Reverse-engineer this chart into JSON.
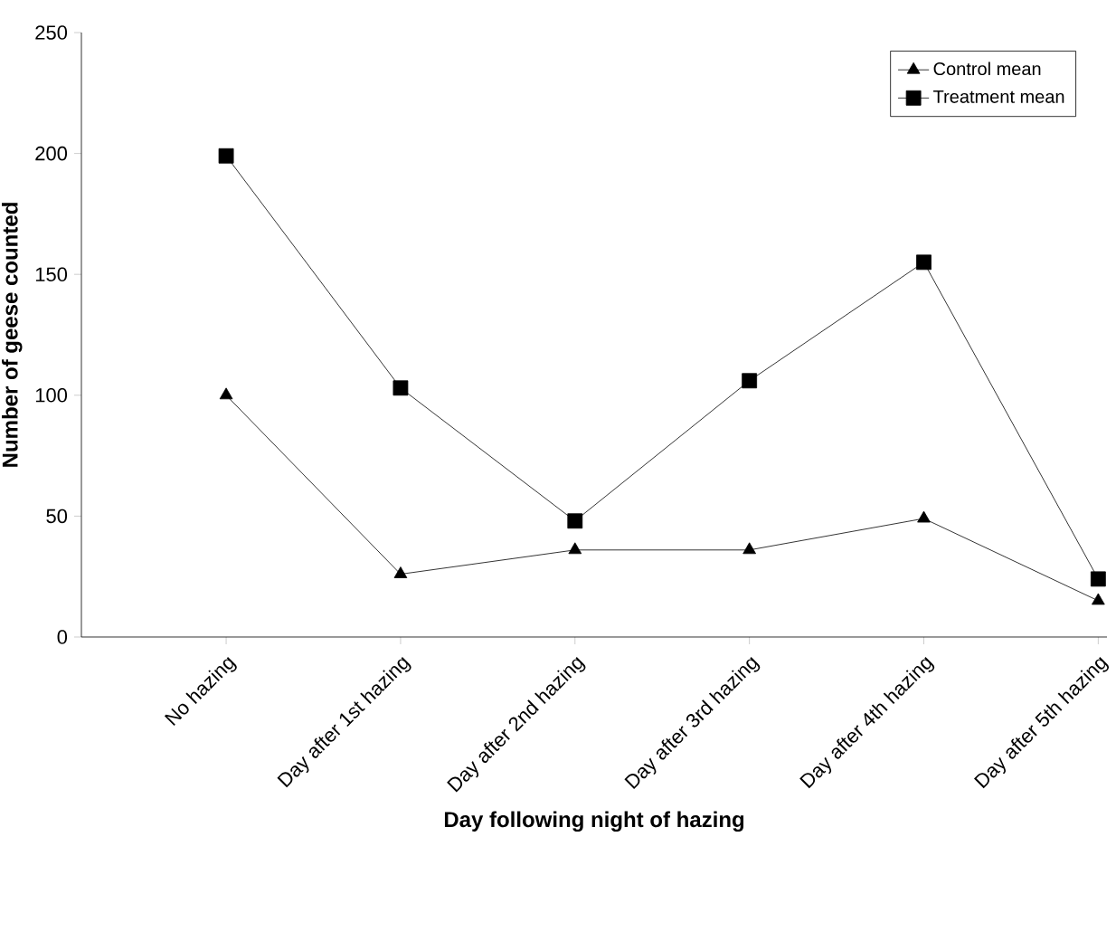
{
  "chart_data": {
    "type": "line",
    "xlabel": "Day following night of hazing",
    "ylabel": "Number of geese counted",
    "categories": [
      "No hazing",
      "Day after 1st hazing",
      "Day after 2nd hazing",
      "Day after 3rd hazing",
      "Day after 4th hazing",
      "Day after 5th hazing"
    ],
    "series": [
      {
        "name": "Control mean",
        "color": "#000000",
        "marker": "triangle",
        "values": [
          100,
          26,
          36,
          36,
          49,
          15
        ]
      },
      {
        "name": "Treatment mean",
        "color": "#000000",
        "marker": "square",
        "values": [
          199,
          103,
          48,
          106,
          155,
          24
        ]
      }
    ],
    "ylim": [
      0,
      250
    ],
    "yticks": [
      0,
      50,
      100,
      150,
      200,
      250
    ],
    "legend": "top right",
    "grid": false,
    "line_style": "solid"
  }
}
